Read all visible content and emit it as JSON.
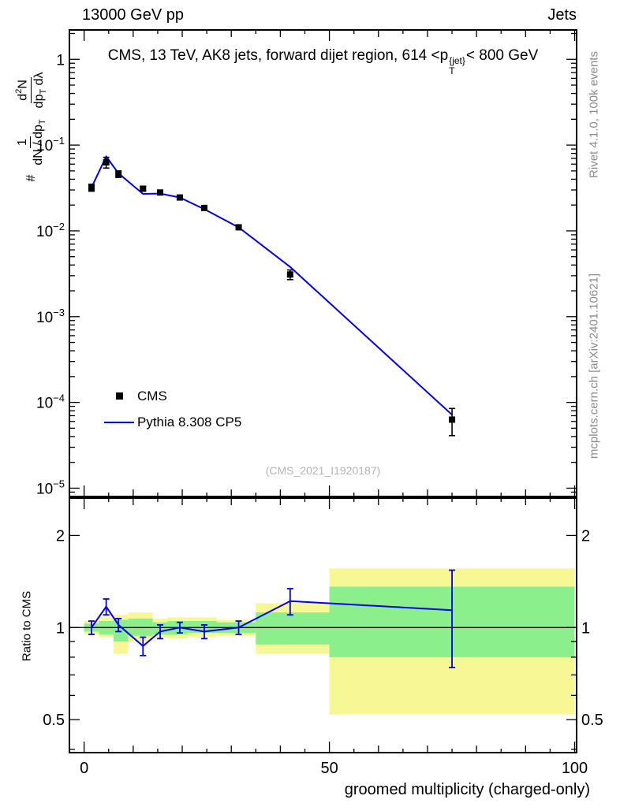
{
  "header": {
    "left": "13000 GeV pp",
    "right": "Jets"
  },
  "title": {
    "pre": "CMS, 13 TeV, AK8 jets, forward dijet region, 614 <p",
    "sup": "{jet}",
    "sub": "T",
    "post": "< 800 GeV"
  },
  "yaxis_label": {
    "hash": "#",
    "f1num": "1",
    "f1den_a": "dN / dp",
    "f1den_sub": "T",
    "f2num_a": "d",
    "f2num_sup": "2",
    "f2num_b": "N",
    "f2den_a": "dp",
    "f2den_sub": "T",
    "f2den_b": " dλ"
  },
  "ratio_ylabel": "Ratio to CMS",
  "xlabel": "groomed multiplicity (charged-only)",
  "watermark": "(CMS_2021_I1920187)",
  "side_notes": {
    "top": "Rivet 4.1.0, 100k events",
    "bottom": "mcplots.cern.ch [arXiv:2401.10621]"
  },
  "legend": [
    {
      "marker": "square",
      "label": "CMS"
    },
    {
      "marker": "line",
      "label": "Pythia 8.308 CP5"
    }
  ],
  "colors": {
    "mc": "#0000ee",
    "data": "#000000",
    "band_outer": "#f7f794",
    "band_inner": "#8bef8b",
    "gray_text": "#8c8c8c"
  },
  "chart_data": {
    "type": "line",
    "title": "CMS, 13 TeV, AK8 jets, forward dijet region, 614 <p_T^{jet}< 800 GeV",
    "xlabel": "groomed multiplicity (charged-only)",
    "xticks": [
      0,
      50,
      100
    ],
    "panels": [
      {
        "name": "main",
        "yscale": "log",
        "ylim": [
          8e-06,
          2.2
        ],
        "xlim": [
          -3,
          100.4
        ],
        "x": [
          1.5,
          4.5,
          7,
          12,
          15.5,
          19.5,
          24.5,
          31.5,
          42,
          75
        ],
        "series": [
          {
            "name": "CMS",
            "type": "scatter",
            "marker": "square",
            "color": "#000000",
            "y": [
              0.032,
              0.063,
              0.046,
              0.031,
              0.028,
              0.0245,
              0.0185,
              0.011,
              0.0031,
              6.3e-05
            ],
            "yerr": [
              0.003,
              0.009,
              0.004,
              0.002,
              0.0016,
              0.0013,
              0.001,
              0.0006,
              0.0004,
              2.2e-05
            ]
          },
          {
            "name": "Pythia 8.308 CP5",
            "type": "line",
            "color": "#0000ee",
            "y": [
              0.032,
              0.0737,
              0.0469,
              0.027,
              0.0272,
              0.0245,
              0.0179,
              0.011,
              0.0038,
              7.18e-05
            ]
          }
        ],
        "yticks_exp": [
          0,
          -1,
          -2,
          -3,
          -4,
          -5
        ]
      },
      {
        "name": "ratio",
        "yscale": "log",
        "ylim": [
          0.39,
          2.65
        ],
        "xlim": [
          -3,
          100.4
        ],
        "x": [
          1.5,
          4.5,
          7,
          12,
          15.5,
          19.5,
          24.5,
          31.5,
          42,
          75
        ],
        "ratio": [
          1.0,
          1.17,
          1.02,
          0.87,
          0.97,
          1.0,
          0.97,
          1.0,
          1.22,
          1.14
        ],
        "ratio_err": [
          0.05,
          0.07,
          0.05,
          0.06,
          0.05,
          0.04,
          0.05,
          0.05,
          0.12,
          0.4
        ],
        "bands": {
          "edges": [
            0,
            3,
            6,
            9,
            14,
            17,
            21,
            27,
            35,
            50,
            100
          ],
          "outer_lo": [
            0.95,
            0.93,
            0.82,
            0.9,
            0.93,
            0.92,
            0.93,
            0.94,
            0.82,
            0.52
          ],
          "outer_hi": [
            1.05,
            1.08,
            1.1,
            1.12,
            1.07,
            1.08,
            1.08,
            1.06,
            1.2,
            1.56
          ],
          "inner_lo": [
            0.97,
            0.95,
            0.9,
            0.94,
            0.95,
            0.95,
            0.96,
            0.96,
            0.88,
            0.8
          ],
          "inner_hi": [
            1.03,
            1.05,
            1.06,
            1.07,
            1.04,
            1.05,
            1.05,
            1.04,
            1.12,
            1.36
          ]
        },
        "yticks": [
          0.5,
          1,
          2
        ],
        "ref_line": 1
      }
    ]
  }
}
